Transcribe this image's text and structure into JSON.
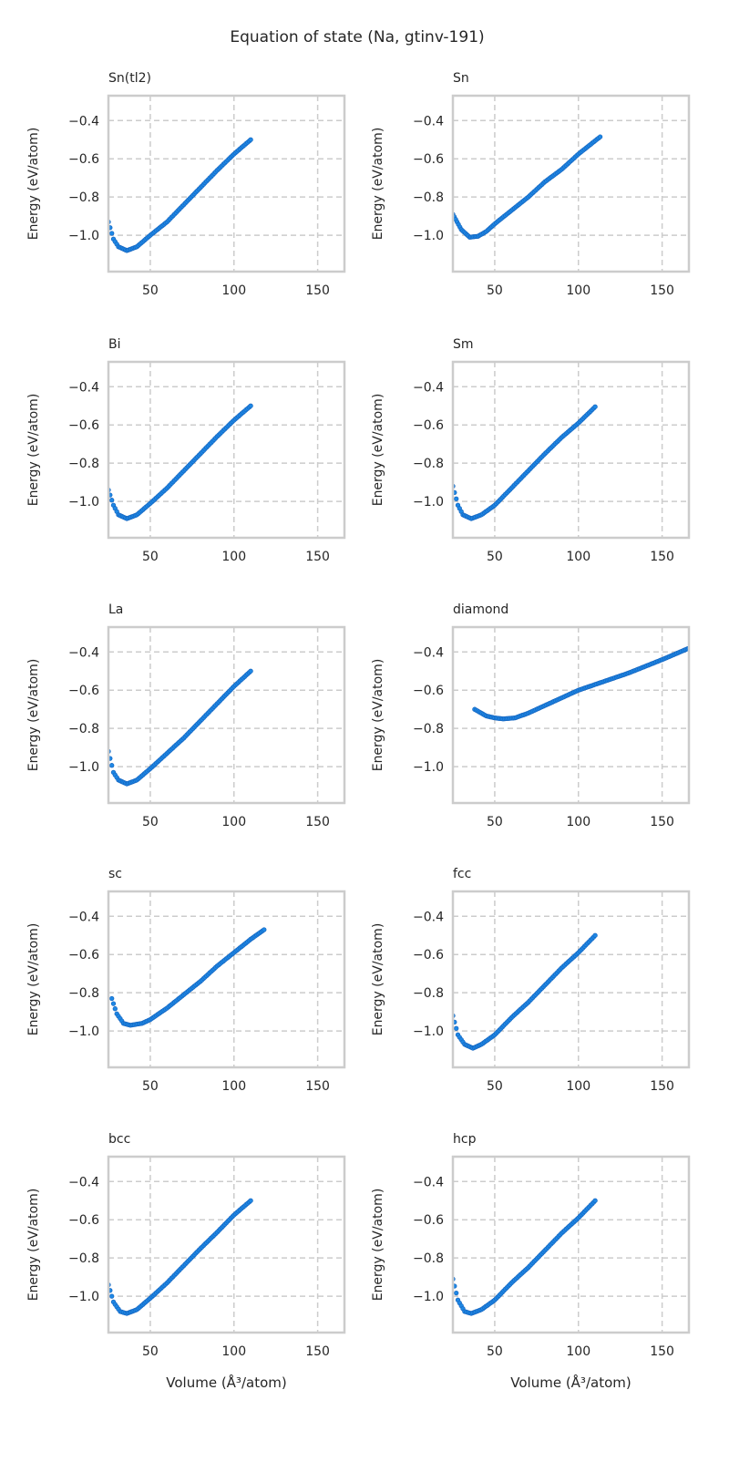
{
  "chart_data": {
    "type": "scatter",
    "title": "Equation of state (Na, gtinv-191)",
    "xlabel": "Volume (Å³/atom)",
    "ylabel": "Energy (eV/atom)",
    "xlim": [
      25,
      166
    ],
    "ylim": [
      -1.19,
      -0.27
    ],
    "xticks": [
      50,
      100,
      150
    ],
    "xtick_labels": [
      "50",
      "100",
      "150"
    ],
    "yticks": [
      -0.4,
      -0.6,
      -0.8,
      -1.0
    ],
    "ytick_labels": [
      "−0.4",
      "−0.6",
      "−0.8",
      "−1.0"
    ],
    "grid": true,
    "marker_color": "#1e88e5",
    "marker_edge_color": "#1565c0",
    "panels": [
      {
        "title": "Sn(tl2)",
        "points": [
          [
            25,
            -0.93
          ],
          [
            28,
            -1.02
          ],
          [
            31,
            -1.06
          ],
          [
            36,
            -1.08
          ],
          [
            42,
            -1.06
          ],
          [
            50,
            -1.0
          ],
          [
            60,
            -0.93
          ],
          [
            70,
            -0.84
          ],
          [
            80,
            -0.75
          ],
          [
            90,
            -0.66
          ],
          [
            100,
            -0.575
          ],
          [
            110,
            -0.5
          ]
        ]
      },
      {
        "title": "Sn",
        "points": [
          [
            25,
            -0.89
          ],
          [
            30,
            -0.97
          ],
          [
            35,
            -1.01
          ],
          [
            40,
            -1.005
          ],
          [
            45,
            -0.98
          ],
          [
            50,
            -0.94
          ],
          [
            60,
            -0.87
          ],
          [
            70,
            -0.8
          ],
          [
            80,
            -0.72
          ],
          [
            90,
            -0.655
          ],
          [
            100,
            -0.575
          ],
          [
            113,
            -0.485
          ]
        ]
      },
      {
        "title": "Bi",
        "points": [
          [
            25,
            -0.94
          ],
          [
            28,
            -1.02
          ],
          [
            31,
            -1.07
          ],
          [
            36,
            -1.09
          ],
          [
            42,
            -1.07
          ],
          [
            50,
            -1.01
          ],
          [
            60,
            -0.93
          ],
          [
            70,
            -0.84
          ],
          [
            80,
            -0.75
          ],
          [
            90,
            -0.66
          ],
          [
            100,
            -0.575
          ],
          [
            110,
            -0.5
          ]
        ]
      },
      {
        "title": "Sm",
        "points": [
          [
            25,
            -0.92
          ],
          [
            28,
            -1.02
          ],
          [
            31,
            -1.07
          ],
          [
            36,
            -1.09
          ],
          [
            42,
            -1.07
          ],
          [
            50,
            -1.02
          ],
          [
            60,
            -0.93
          ],
          [
            70,
            -0.84
          ],
          [
            80,
            -0.75
          ],
          [
            90,
            -0.665
          ],
          [
            100,
            -0.59
          ],
          [
            110,
            -0.505
          ]
        ]
      },
      {
        "title": "La",
        "points": [
          [
            25,
            -0.92
          ],
          [
            28,
            -1.03
          ],
          [
            31,
            -1.07
          ],
          [
            36,
            -1.09
          ],
          [
            42,
            -1.07
          ],
          [
            50,
            -1.01
          ],
          [
            60,
            -0.93
          ],
          [
            70,
            -0.85
          ],
          [
            80,
            -0.76
          ],
          [
            90,
            -0.67
          ],
          [
            100,
            -0.58
          ],
          [
            110,
            -0.5
          ]
        ]
      },
      {
        "title": "diamond",
        "points": [
          [
            38,
            -0.7
          ],
          [
            45,
            -0.735
          ],
          [
            50,
            -0.745
          ],
          [
            55,
            -0.75
          ],
          [
            62,
            -0.745
          ],
          [
            70,
            -0.72
          ],
          [
            80,
            -0.68
          ],
          [
            90,
            -0.64
          ],
          [
            100,
            -0.6
          ],
          [
            110,
            -0.57
          ],
          [
            130,
            -0.51
          ],
          [
            150,
            -0.44
          ],
          [
            166,
            -0.38
          ]
        ]
      },
      {
        "title": "sc",
        "points": [
          [
            27,
            -0.83
          ],
          [
            30,
            -0.91
          ],
          [
            34,
            -0.96
          ],
          [
            38,
            -0.97
          ],
          [
            45,
            -0.96
          ],
          [
            50,
            -0.94
          ],
          [
            60,
            -0.88
          ],
          [
            70,
            -0.81
          ],
          [
            80,
            -0.74
          ],
          [
            90,
            -0.66
          ],
          [
            100,
            -0.59
          ],
          [
            110,
            -0.52
          ],
          [
            118,
            -0.47
          ]
        ]
      },
      {
        "title": "fcc",
        "points": [
          [
            25,
            -0.92
          ],
          [
            28,
            -1.02
          ],
          [
            32,
            -1.07
          ],
          [
            37,
            -1.09
          ],
          [
            42,
            -1.07
          ],
          [
            50,
            -1.02
          ],
          [
            60,
            -0.93
          ],
          [
            70,
            -0.85
          ],
          [
            80,
            -0.76
          ],
          [
            90,
            -0.67
          ],
          [
            100,
            -0.59
          ],
          [
            110,
            -0.5
          ]
        ]
      },
      {
        "title": "bcc",
        "points": [
          [
            25,
            -0.94
          ],
          [
            28,
            -1.03
          ],
          [
            32,
            -1.08
          ],
          [
            36,
            -1.09
          ],
          [
            42,
            -1.07
          ],
          [
            50,
            -1.01
          ],
          [
            60,
            -0.93
          ],
          [
            70,
            -0.84
          ],
          [
            80,
            -0.75
          ],
          [
            90,
            -0.665
          ],
          [
            100,
            -0.575
          ],
          [
            110,
            -0.5
          ]
        ]
      },
      {
        "title": "hcp",
        "points": [
          [
            25,
            -0.91
          ],
          [
            28,
            -1.02
          ],
          [
            32,
            -1.08
          ],
          [
            36,
            -1.09
          ],
          [
            42,
            -1.07
          ],
          [
            50,
            -1.02
          ],
          [
            60,
            -0.93
          ],
          [
            70,
            -0.85
          ],
          [
            80,
            -0.76
          ],
          [
            90,
            -0.67
          ],
          [
            100,
            -0.59
          ],
          [
            110,
            -0.5
          ]
        ]
      }
    ]
  }
}
